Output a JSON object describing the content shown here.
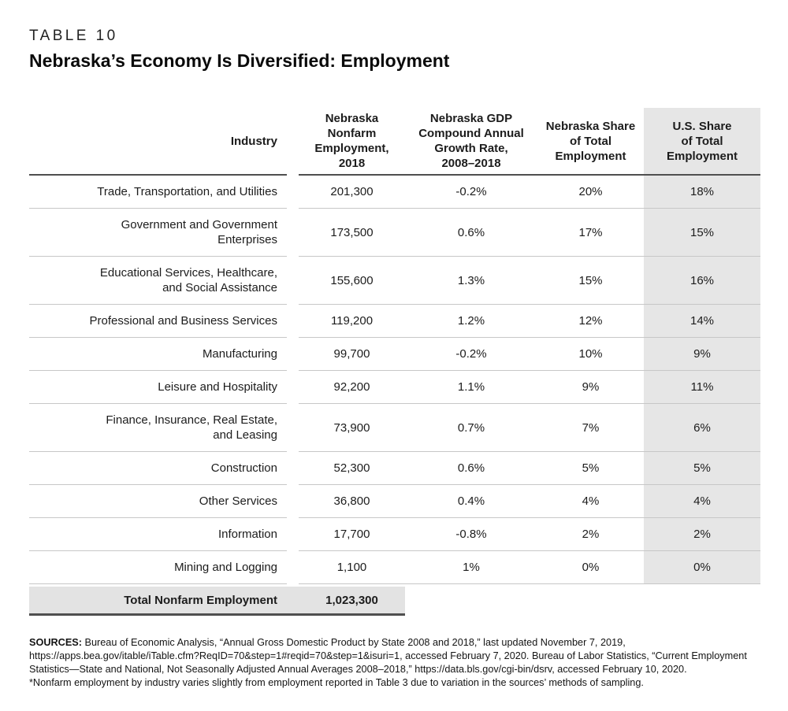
{
  "header": {
    "table_label": "TABLE 10",
    "title": "Nebraska’s Economy Is Diversified: Employment"
  },
  "table": {
    "columns": [
      {
        "label": "Industry"
      },
      {
        "label": "Nebraska\nNonfarm\nEmployment, 2018"
      },
      {
        "label": "Nebraska GDP\nCompound Annual\nGrowth Rate,\n2008–2018"
      },
      {
        "label": "Nebraska Share\nof Total\nEmployment"
      },
      {
        "label": "U.S. Share\nof Total\nEmployment"
      }
    ],
    "rows": [
      {
        "industry": "Trade, Transportation, and Utilities",
        "employment_2018": "201,300",
        "gdp_cagr": "-0.2%",
        "ne_share": "20%",
        "us_share": "18%"
      },
      {
        "industry": "Government and Government\nEnterprises",
        "employment_2018": "173,500",
        "gdp_cagr": "0.6%",
        "ne_share": "17%",
        "us_share": "15%"
      },
      {
        "industry": "Educational Services, Healthcare,\nand Social Assistance",
        "employment_2018": "155,600",
        "gdp_cagr": "1.3%",
        "ne_share": "15%",
        "us_share": "16%"
      },
      {
        "industry": "Professional and Business Services",
        "employment_2018": "119,200",
        "gdp_cagr": "1.2%",
        "ne_share": "12%",
        "us_share": "14%"
      },
      {
        "industry": "Manufacturing",
        "employment_2018": "99,700",
        "gdp_cagr": "-0.2%",
        "ne_share": "10%",
        "us_share": "9%"
      },
      {
        "industry": "Leisure and Hospitality",
        "employment_2018": "92,200",
        "gdp_cagr": "1.1%",
        "ne_share": "9%",
        "us_share": "11%"
      },
      {
        "industry": "Finance, Insurance, Real Estate,\nand Leasing",
        "employment_2018": "73,900",
        "gdp_cagr": "0.7%",
        "ne_share": "7%",
        "us_share": "6%"
      },
      {
        "industry": "Construction",
        "employment_2018": "52,300",
        "gdp_cagr": "0.6%",
        "ne_share": "5%",
        "us_share": "5%"
      },
      {
        "industry": "Other Services",
        "employment_2018": "36,800",
        "gdp_cagr": "0.4%",
        "ne_share": "4%",
        "us_share": "4%"
      },
      {
        "industry": "Information",
        "employment_2018": "17,700",
        "gdp_cagr": "-0.8%",
        "ne_share": "2%",
        "us_share": "2%"
      },
      {
        "industry": "Mining and Logging",
        "employment_2018": "1,100",
        "gdp_cagr": "1%",
        "ne_share": "0%",
        "us_share": "0%"
      }
    ],
    "total": {
      "label": "Total Nonfarm Employment",
      "value": "1,023,300"
    }
  },
  "footer": {
    "sources_label": "SOURCES:",
    "sources_text": "Bureau of Economic Analysis, “Annual Gross Domestic Product by State 2008 and 2018,” last updated November 7, 2019, https://apps.bea.gov/itable/iTable.cfm?ReqID=70&step=1#reqid=70&step=1&isuri=1, accessed February 7, 2020. Bureau of Labor Statistics, “Current Employment Statistics—State and National, Not Seasonally Adjusted Annual Averages 2008–2018,” https://data.bls.gov/cgi-bin/dsrv, accessed February 10, 2020.",
    "note": "*Nonfarm employment by industry varies slightly from employment reported in Table 3 due to variation in the sources’ methods of sampling."
  },
  "colors": {
    "shaded_col_bg": "#e6e6e6",
    "total_row_bg": "#e3e3e3",
    "rule_dark": "#4f4f4f",
    "rule_light": "#c7c7c7",
    "text": "#1c1c1c"
  }
}
